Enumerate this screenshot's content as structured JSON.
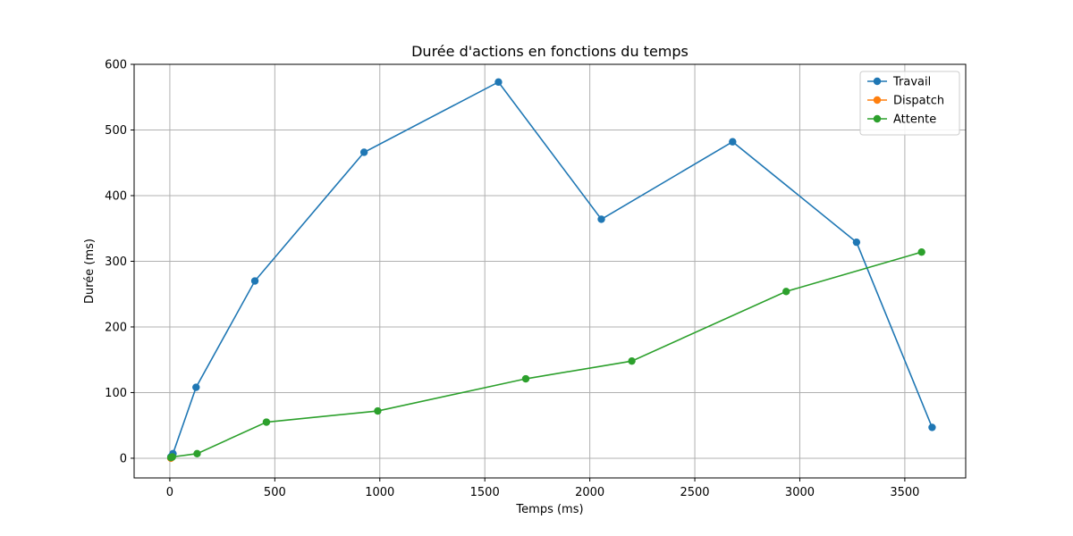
{
  "chart_data": {
    "type": "line",
    "title": "Durée d'actions en fonctions du temps",
    "xlabel": "Temps (ms)",
    "ylabel": "Durée (ms)",
    "xlim": [
      -170,
      3790
    ],
    "ylim": [
      -30,
      600
    ],
    "xticks": [
      0,
      500,
      1000,
      1500,
      2000,
      2500,
      3000,
      3500
    ],
    "yticks": [
      0,
      100,
      200,
      300,
      400,
      500,
      600
    ],
    "grid": true,
    "legend_position": "top-right",
    "series": [
      {
        "name": "Travail",
        "color": "#1f77b4",
        "x": [
          5,
          15,
          125,
          405,
          925,
          1565,
          2055,
          2680,
          3270,
          3630
        ],
        "y": [
          2,
          7,
          108,
          270,
          466,
          573,
          364,
          482,
          329,
          47
        ]
      },
      {
        "name": "Dispatch",
        "color": "#ff7f0e",
        "x": [
          5,
          8
        ],
        "y": [
          0,
          1
        ]
      },
      {
        "name": "Attente",
        "color": "#2ca02c",
        "x": [
          5,
          12,
          130,
          460,
          990,
          1695,
          2200,
          2935,
          3580
        ],
        "y": [
          1,
          2,
          7,
          55,
          72,
          121,
          148,
          254,
          314
        ]
      }
    ]
  }
}
